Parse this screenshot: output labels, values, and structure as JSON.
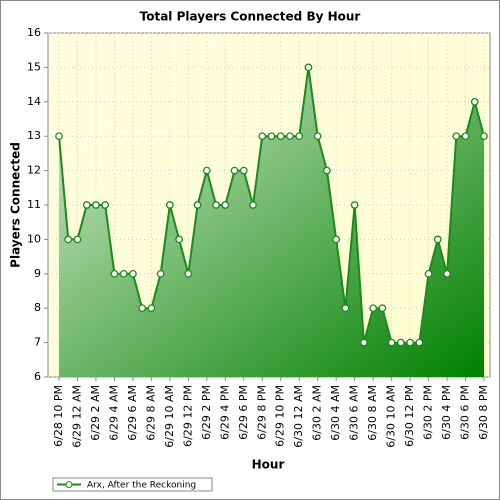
{
  "chart_data": {
    "type": "area",
    "title": "Total Players Connected By Hour",
    "x_label": "Hour",
    "y_label": "Players Connected",
    "categories": [
      "6/28 10 PM",
      null,
      "6/29 12 AM",
      null,
      "6/29 2 AM",
      null,
      "6/29 4 AM",
      null,
      "6/29 6 AM",
      null,
      "6/29 8 AM",
      null,
      "6/29 10 AM",
      null,
      "6/29 12 PM",
      null,
      "6/29 2 PM",
      null,
      "6/29 4 PM",
      null,
      "6/29 6 PM",
      null,
      "6/29 8 PM",
      null,
      "6/29 10 PM",
      null,
      "6/30 12 AM",
      null,
      "6/30 2 AM",
      null,
      "6/30 4 AM",
      null,
      "6/30 6 AM",
      null,
      "6/30 8 AM",
      null,
      "6/30 10 AM",
      null,
      "6/30 12 PM",
      null,
      "6/30 2 PM",
      null,
      "6/30 4 PM",
      null,
      "6/30 6 PM",
      null,
      "6/30 8 PM"
    ],
    "series": [
      {
        "name": "Arx, After the Reckoning",
        "color": "#1a8a1a",
        "values": [
          13,
          10,
          10,
          11,
          11,
          11,
          9,
          9,
          9,
          8,
          8,
          9,
          11,
          10,
          9,
          11,
          12,
          11,
          11,
          12,
          12,
          11,
          13,
          13,
          13,
          13,
          13,
          15,
          13,
          12,
          10,
          8,
          11,
          7,
          8,
          8,
          7,
          7,
          7,
          7,
          9,
          10,
          9,
          13,
          13,
          14,
          13
        ]
      }
    ],
    "ylim": [
      6,
      16
    ],
    "yticks": [
      6,
      7,
      8,
      9,
      10,
      11,
      12,
      13,
      14,
      15,
      16
    ],
    "grid": true,
    "legend": "bottom-left"
  }
}
